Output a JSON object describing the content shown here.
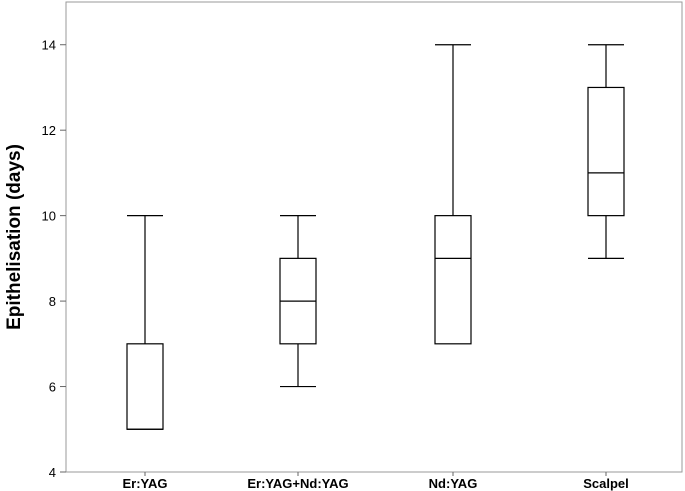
{
  "chart_data": {
    "type": "box",
    "title": "",
    "xlabel": "",
    "ylabel": "Epithelisation (days)",
    "ylim": [
      4,
      15
    ],
    "yticks": [
      4,
      6,
      8,
      10,
      12,
      14
    ],
    "grid": false,
    "categories": [
      "Er:YAG",
      "Er:YAG+Nd:YAG",
      "Nd:YAG",
      "Scalpel"
    ],
    "boxes": [
      {
        "min": 5,
        "q1": 5,
        "median": 5,
        "q3": 7,
        "max": 10
      },
      {
        "min": 6,
        "q1": 7,
        "median": 8,
        "q3": 9,
        "max": 10
      },
      {
        "min": 7,
        "q1": 7,
        "median": 9,
        "q3": 10,
        "max": 14
      },
      {
        "min": 9,
        "q1": 10,
        "median": 11,
        "q3": 13,
        "max": 14
      }
    ],
    "colors": {
      "stroke": "#000000",
      "frame": "#999999",
      "fill": "#ffffff"
    }
  }
}
